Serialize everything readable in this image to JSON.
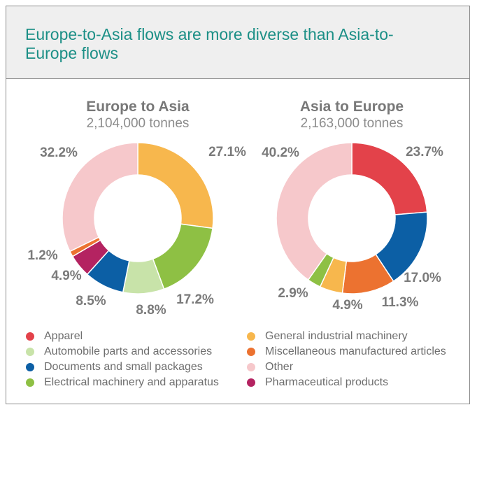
{
  "header": {
    "title": "Europe-to-Asia flows are more diverse than Asia-to-Europe flows"
  },
  "colors": {
    "apparel": "#e3424a",
    "auto": "#c8e3a9",
    "documents": "#0c5fa5",
    "electrical": "#8ec044",
    "general": "#f7b74d",
    "misc": "#ec7230",
    "other": "#f6c8cb",
    "pharma": "#b42361"
  },
  "legend": [
    {
      "key": "apparel",
      "label": "Apparel"
    },
    {
      "key": "auto",
      "label": "Automobile parts and accessories"
    },
    {
      "key": "documents",
      "label": "Documents and small packages"
    },
    {
      "key": "electrical",
      "label": "Electrical machinery and apparatus"
    },
    {
      "key": "general",
      "label": "General industrial machinery"
    },
    {
      "key": "misc",
      "label": "Miscellaneous manufactured articles"
    },
    {
      "key": "other",
      "label": "Other"
    },
    {
      "key": "pharma",
      "label": "Pharmaceutical products"
    }
  ],
  "chart_data": [
    {
      "type": "pie",
      "title": "Europe to Asia",
      "subtitle": "2,104,000 tonnes",
      "slices": [
        {
          "key": "general",
          "value": 27.1,
          "label": "27.1%"
        },
        {
          "key": "electrical",
          "value": 17.2,
          "label": "17.2%"
        },
        {
          "key": "auto",
          "value": 8.8,
          "label": "8.8%"
        },
        {
          "key": "documents",
          "value": 8.5,
          "label": "8.5%"
        },
        {
          "key": "pharma",
          "value": 4.9,
          "label": "4.9%"
        },
        {
          "key": "misc",
          "value": 1.2,
          "label": "1.2%"
        },
        {
          "key": "other",
          "value": 32.2,
          "label": "32.2%"
        }
      ]
    },
    {
      "type": "pie",
      "title": "Asia to Europe",
      "subtitle": "2,163,000 tonnes",
      "slices": [
        {
          "key": "apparel",
          "value": 23.7,
          "label": "23.7%"
        },
        {
          "key": "documents",
          "value": 17.0,
          "label": "17.0%"
        },
        {
          "key": "misc",
          "value": 11.3,
          "label": "11.3%"
        },
        {
          "key": "general",
          "value": 4.9,
          "label": "4.9%"
        },
        {
          "key": "electrical",
          "value": 2.9,
          "label": "2.9%"
        },
        {
          "key": "other",
          "value": 40.2,
          "label": "40.2%"
        }
      ]
    }
  ]
}
